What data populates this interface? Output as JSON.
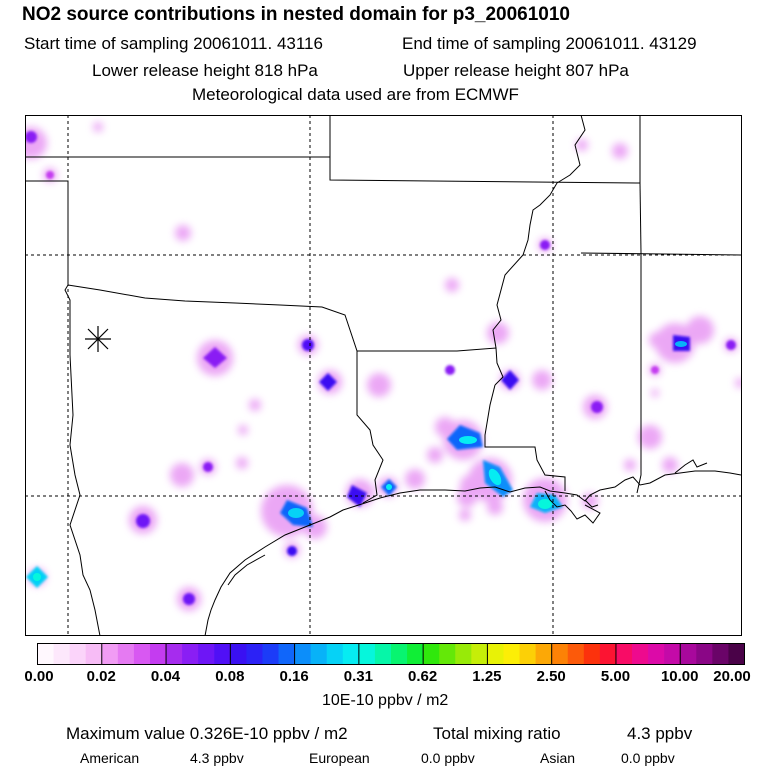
{
  "header": {
    "title": "NO2 source contributions in nested domain for p3_20061010",
    "start_label": "Start time of sampling 20061011. 43116",
    "end_label": "End time of sampling 20061011. 43129",
    "lower_label": "Lower release height  818 hPa",
    "upper_label": "Upper release height  807 hPa",
    "met_label": "Meteorological data used are from ECMWF"
  },
  "legend": {
    "tick_labels": [
      "0.00",
      "0.02",
      "0.04",
      "0.08",
      "0.16",
      "0.31",
      "0.62",
      "1.25",
      "2.50",
      "5.00",
      "10.00",
      "20.00"
    ],
    "units": "10E-10 ppbv / m2",
    "colors": [
      "#fff8fe",
      "#fde8fc",
      "#fbd4fa",
      "#f7bcf6",
      "#f19cf4",
      "#e57af2",
      "#d858f2",
      "#c43cf0",
      "#a62cee",
      "#8a1ef4",
      "#6e16f6",
      "#5010f6",
      "#3a10f2",
      "#2c22f6",
      "#1c3cf8",
      "#1066fa",
      "#0c8efa",
      "#08b2f8",
      "#06d2f6",
      "#06ecf2",
      "#06f6dc",
      "#06f6a8",
      "#08f470",
      "#10ee36",
      "#30e80c",
      "#64e808",
      "#98ea08",
      "#c6ee08",
      "#e8f206",
      "#fcee06",
      "#fcd006",
      "#fca806",
      "#fc8206",
      "#fc5a0a",
      "#fc320c",
      "#fc1432",
      "#f80c66",
      "#ee0a8e",
      "#dc0aa8",
      "#c40aa8",
      "#a8089c",
      "#8a0686",
      "#6a0468",
      "#4a0248"
    ]
  },
  "summary": {
    "max_value": "Maximum value  0.326E-10 ppbv / m2",
    "total_label": "Total mixing ratio",
    "total_value": "4.3 ppbv",
    "american_label": "American",
    "american_value": "4.3 ppbv",
    "european_label": "European",
    "european_value": "0.0 ppbv",
    "asian_label": "Asian",
    "asian_value": "0.0 ppbv"
  },
  "map": {
    "release_marker": "release-site-asterisk"
  }
}
